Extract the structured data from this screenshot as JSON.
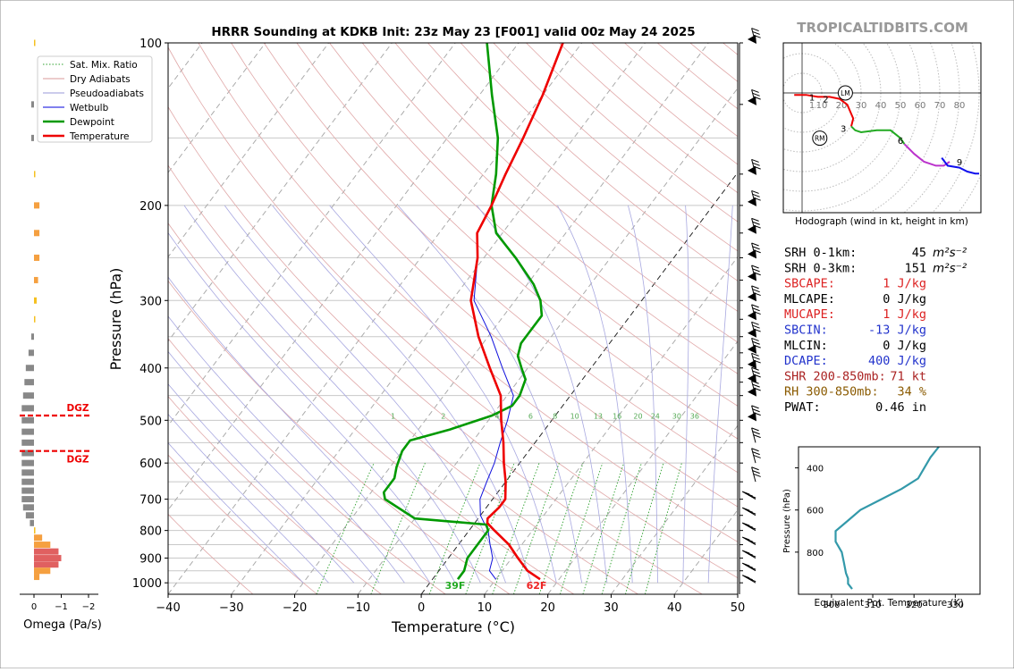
{
  "header": {
    "title": "HRRR Sounding at KDKB Init: 23z May 23 [F001] valid 00z May 24 2025",
    "brand": "TROPICALTIDBITS.COM"
  },
  "skewt": {
    "xlabel": "Temperature (°C)",
    "ylabel": "Pressure (hPa)",
    "xlim": [
      -40,
      50
    ],
    "ylim": [
      1050,
      100
    ],
    "x_ticks": [
      -40,
      -30,
      -20,
      -10,
      0,
      10,
      20,
      30,
      40,
      50
    ],
    "x_tick_labels": [
      "−40",
      "−30",
      "−20",
      "−10",
      "0",
      "10",
      "20",
      "30",
      "40",
      "50"
    ],
    "p_ticks": [
      1000,
      900,
      800,
      700,
      600,
      500,
      400,
      300,
      200,
      100
    ],
    "p_grid": [
      1000,
      950,
      900,
      850,
      800,
      750,
      700,
      650,
      600,
      550,
      500,
      450,
      400,
      350,
      300,
      250,
      200,
      150,
      100
    ],
    "mixing_ratio_labels": [
      "1",
      "2",
      "4",
      "6",
      "8",
      "10",
      "13",
      "16",
      "20",
      "24",
      "30",
      "36"
    ],
    "legend": [
      {
        "label": "Sat. Mix. Ratio",
        "color": "#2ca02c",
        "style": "dotted"
      },
      {
        "label": "Dry Adiabats",
        "color": "#d99a9a",
        "style": "solid"
      },
      {
        "label": "Pseudoadiabats",
        "color": "#9999d9",
        "style": "solid"
      },
      {
        "label": "Wetbulb",
        "color": "#0000dd",
        "style": "solid"
      },
      {
        "label": "Dewpoint",
        "color": "#009900",
        "style": "solid"
      },
      {
        "label": "Temperature",
        "color": "#ee0000",
        "style": "solid"
      }
    ],
    "sfc_dewpoint_label": "39F",
    "sfc_temp_label": "62F"
  },
  "chart_data": {
    "type": "line",
    "temperature": {
      "p": [
        985,
        950,
        900,
        850,
        800,
        775,
        760,
        725,
        700,
        650,
        600,
        550,
        500,
        450,
        400,
        350,
        300,
        250,
        225,
        200,
        175,
        150,
        125,
        100
      ],
      "t": [
        17,
        14,
        11,
        8,
        4,
        2,
        1.5,
        2,
        2,
        0,
        -2.5,
        -5,
        -8,
        -11,
        -16,
        -21.5,
        -27,
        -31,
        -34,
        -35,
        -36.5,
        -38,
        -40,
        -43
      ]
    },
    "dewpoint": {
      "p": [
        985,
        950,
        900,
        850,
        800,
        780,
        760,
        700,
        680,
        640,
        610,
        570,
        545,
        520,
        490,
        470,
        450,
        420,
        400,
        380,
        360,
        345,
        320,
        300,
        280,
        250,
        225,
        200,
        175,
        150,
        125,
        100
      ],
      "t": [
        4,
        4,
        3,
        3,
        3,
        2,
        -10,
        -17,
        -18,
        -18,
        -19,
        -20,
        -20,
        -15,
        -10,
        -8,
        -8,
        -9,
        -11,
        -13,
        -14,
        -14,
        -14,
        -16,
        -19,
        -25,
        -31,
        -35,
        -38,
        -42,
        -48,
        -55
      ]
    },
    "wetbulb": {
      "p": [
        985,
        950,
        900,
        850,
        800,
        775,
        750,
        700,
        650,
        600,
        550,
        500,
        450,
        400,
        350,
        300,
        250,
        225,
        200,
        175,
        150,
        125,
        100
      ],
      "t": [
        10,
        8,
        7,
        5,
        3,
        1.5,
        0,
        -2,
        -3,
        -4,
        -5.5,
        -7,
        -9,
        -14,
        -19.5,
        -26.5,
        -31,
        -34,
        -35,
        -36.5,
        -38,
        -40,
        -43
      ]
    }
  },
  "omega": {
    "xlabel": "Omega (Pa/s)",
    "ticks": [
      "0",
      "−1",
      "−2"
    ],
    "dgz_label": "DGZ",
    "dgz_top_p": 490,
    "dgz_bottom_p": 570,
    "values": [
      {
        "p": 100,
        "v": -0.03
      },
      {
        "p": 130,
        "v": 0.1
      },
      {
        "p": 150,
        "v": 0.1
      },
      {
        "p": 175,
        "v": -0.03
      },
      {
        "p": 200,
        "v": -0.2
      },
      {
        "p": 225,
        "v": -0.2
      },
      {
        "p": 250,
        "v": -0.2
      },
      {
        "p": 275,
        "v": -0.15
      },
      {
        "p": 300,
        "v": -0.1
      },
      {
        "p": 325,
        "v": -0.02
      },
      {
        "p": 350,
        "v": 0.1
      },
      {
        "p": 375,
        "v": 0.2
      },
      {
        "p": 400,
        "v": 0.3
      },
      {
        "p": 425,
        "v": 0.35
      },
      {
        "p": 450,
        "v": 0.4
      },
      {
        "p": 475,
        "v": 0.45
      },
      {
        "p": 500,
        "v": 0.45
      },
      {
        "p": 525,
        "v": 0.45
      },
      {
        "p": 550,
        "v": 0.45
      },
      {
        "p": 575,
        "v": 0.45
      },
      {
        "p": 600,
        "v": 0.45
      },
      {
        "p": 625,
        "v": 0.45
      },
      {
        "p": 650,
        "v": 0.45
      },
      {
        "p": 675,
        "v": 0.45
      },
      {
        "p": 700,
        "v": 0.45
      },
      {
        "p": 725,
        "v": 0.4
      },
      {
        "p": 750,
        "v": 0.3
      },
      {
        "p": 775,
        "v": 0.15
      },
      {
        "p": 800,
        "v": -0.05
      },
      {
        "p": 825,
        "v": -0.3
      },
      {
        "p": 850,
        "v": -0.6
      },
      {
        "p": 875,
        "v": -0.9
      },
      {
        "p": 900,
        "v": -1.0
      },
      {
        "p": 925,
        "v": -0.9
      },
      {
        "p": 950,
        "v": -0.6
      },
      {
        "p": 975,
        "v": -0.2
      }
    ]
  },
  "winds": {
    "p": [
      100,
      130,
      175,
      200,
      225,
      250,
      275,
      300,
      325,
      350,
      375,
      400,
      425,
      450,
      500,
      550,
      600,
      650,
      700,
      750,
      800,
      850,
      900,
      950,
      1000
    ]
  },
  "hodograph": {
    "caption": "Hodograph (wind in kt, height in km)",
    "ring_labels": [
      "10",
      "20",
      "30",
      "40",
      "50",
      "60",
      "70",
      "80"
    ],
    "height_labels": [
      "1",
      "2",
      "3",
      "6",
      "9"
    ],
    "lm_label": "LM",
    "rm_label": "RM",
    "first_ring_label": "1"
  },
  "indices": [
    {
      "label": "SRH 0-1km:",
      "value": "45",
      "unit": "m²s⁻²",
      "color": "#000000"
    },
    {
      "label": "SRH 0-3km:",
      "value": "151",
      "unit": "m²s⁻²",
      "color": "#000000"
    },
    {
      "label": "SBCAPE:",
      "value": "1 J/kg",
      "unit": "",
      "color": "#dd2222"
    },
    {
      "label": "MLCAPE:",
      "value": "0 J/kg",
      "unit": "",
      "color": "#000000"
    },
    {
      "label": "MUCAPE:",
      "value": "1 J/kg",
      "unit": "",
      "color": "#dd2222"
    },
    {
      "label": "SBCIN:",
      "value": "-13 J/kg",
      "unit": "",
      "color": "#2233cc"
    },
    {
      "label": "MLCIN:",
      "value": "0 J/kg",
      "unit": "",
      "color": "#000000"
    },
    {
      "label": "DCAPE:",
      "value": "400 J/kg",
      "unit": "",
      "color": "#2233cc"
    },
    {
      "label": "SHR 200-850mb:",
      "value": "71 kt",
      "unit": "",
      "color": "#aa2222"
    },
    {
      "label": "RH 300-850mb:",
      "value": "34 %",
      "unit": "",
      "color": "#8a5a00"
    },
    {
      "label": "PWAT:",
      "value": "0.46 in",
      "unit": "",
      "color": "#000000"
    }
  ],
  "theta_e": {
    "xlabel": "Equivalent Pot. Temperature (K)",
    "ylabel": "Pressure (hPa)",
    "x_ticks": [
      "300",
      "310",
      "320",
      "330"
    ],
    "y_ticks": [
      "400",
      "600",
      "800"
    ],
    "color": "#3399aa",
    "p": [
      975,
      950,
      925,
      900,
      850,
      800,
      750,
      700,
      650,
      600,
      550,
      500,
      450,
      400,
      350,
      300
    ],
    "theta": [
      305,
      304,
      304,
      303.5,
      303,
      302.5,
      301,
      301,
      304,
      307,
      312,
      317,
      321,
      322.5,
      324,
      326
    ]
  }
}
